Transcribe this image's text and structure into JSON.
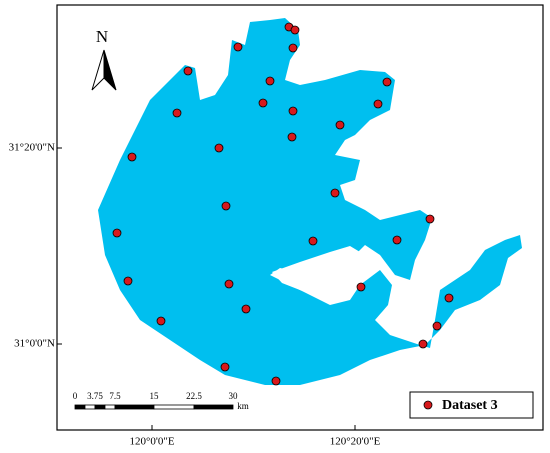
{
  "north_arrow": "N",
  "graticule": {
    "lat_labels": [
      "31°20'0\"N",
      "31°0'0\"N"
    ],
    "lon_labels": [
      "120°0'0\"E",
      "120°20'0\"E"
    ]
  },
  "scale_bar": {
    "labels": [
      "0",
      "3.75",
      "7.5",
      "15",
      "22.5",
      "30"
    ],
    "unit": "km"
  },
  "legend": {
    "label": "Dataset 3"
  }
}
